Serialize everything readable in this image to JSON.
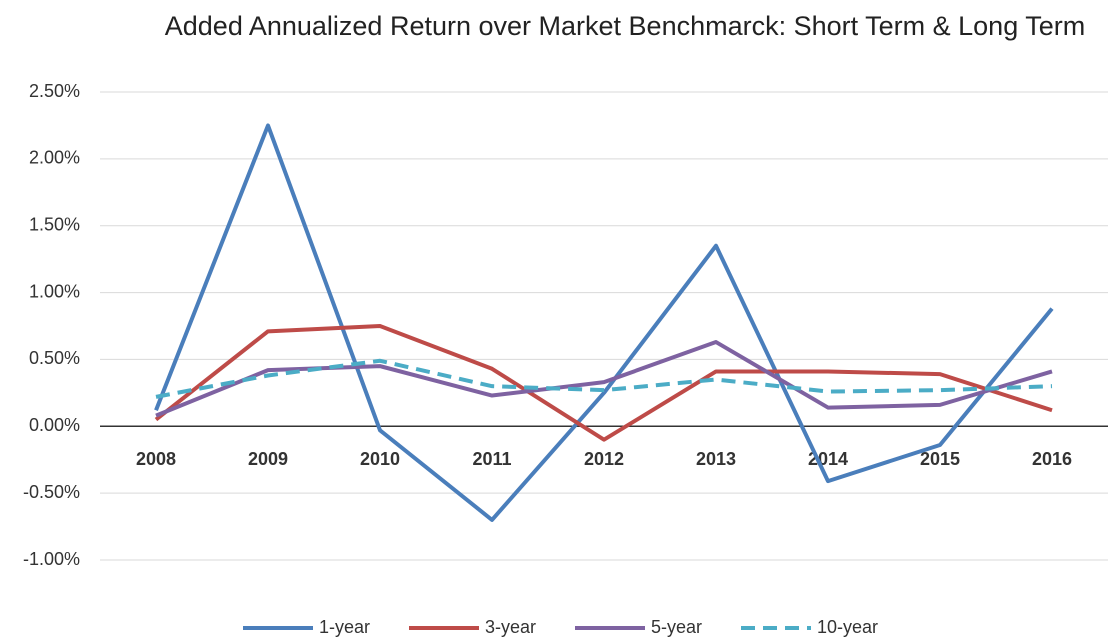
{
  "chart_data": {
    "type": "line",
    "title": "Added Annualized Return over Market Benchmarck: Short Term & Long Term",
    "categories": [
      "2008",
      "2009",
      "2010",
      "2011",
      "2012",
      "2013",
      "2014",
      "2015",
      "2016"
    ],
    "series": [
      {
        "name": "1-year",
        "color": "#4a7ebb",
        "dash": false,
        "values": [
          0.12,
          2.25,
          -0.03,
          -0.7,
          0.25,
          1.35,
          -0.41,
          -0.14,
          0.88
        ]
      },
      {
        "name": "3-year",
        "color": "#be4b48",
        "dash": false,
        "values": [
          0.05,
          0.71,
          0.75,
          0.43,
          -0.1,
          0.41,
          0.41,
          0.39,
          0.12
        ]
      },
      {
        "name": "5-year",
        "color": "#7e62a1",
        "dash": false,
        "values": [
          0.08,
          0.42,
          0.45,
          0.23,
          0.33,
          0.63,
          0.14,
          0.16,
          0.41
        ]
      },
      {
        "name": "10-year",
        "color": "#4bacc6",
        "dash": true,
        "values": [
          0.22,
          0.38,
          0.49,
          0.3,
          0.27,
          0.35,
          0.26,
          0.27,
          0.3
        ]
      }
    ],
    "ylim": [
      -1.0,
      2.5
    ],
    "yticks": [
      {
        "value": -1.0,
        "label": "-1.00%"
      },
      {
        "value": -0.5,
        "label": "-0.50%"
      },
      {
        "value": 0.0,
        "label": "0.00%"
      },
      {
        "value": 0.5,
        "label": "0.50%"
      },
      {
        "value": 1.0,
        "label": "1.00%"
      },
      {
        "value": 1.5,
        "label": "1.50%"
      },
      {
        "value": 2.0,
        "label": "2.00%"
      },
      {
        "value": 2.5,
        "label": "2.50%"
      }
    ],
    "grid": true,
    "legend": "bottom"
  }
}
